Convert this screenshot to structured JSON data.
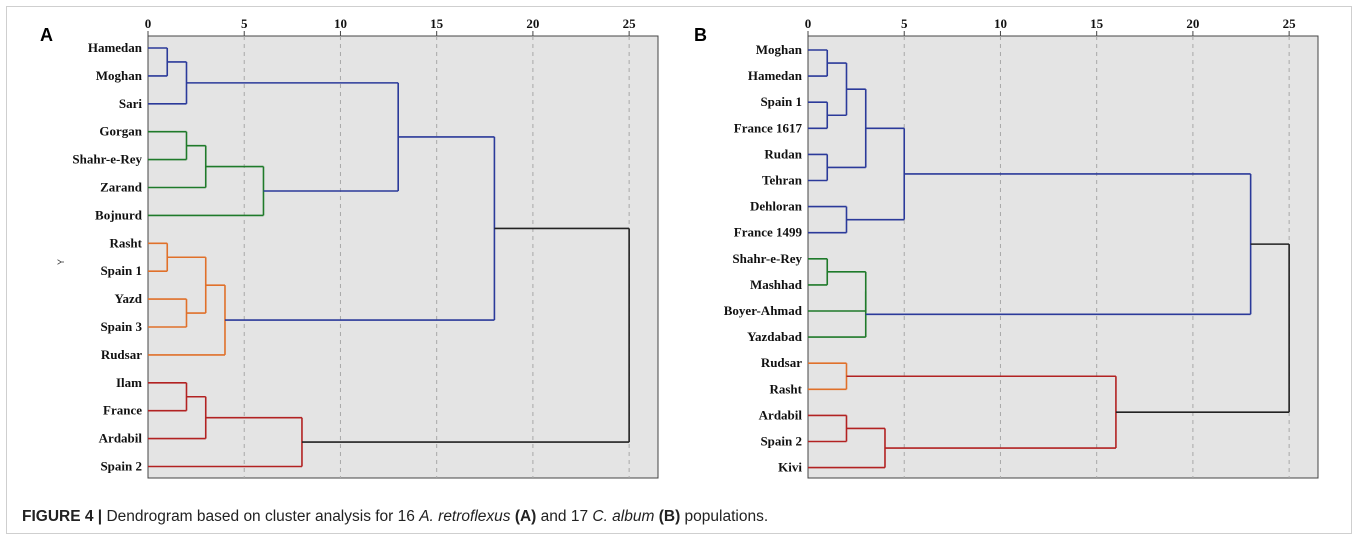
{
  "caption": {
    "prefix": "FIGURE 4 |",
    "text_1": " Dendrogram based on cluster analysis for 16 ",
    "species_1": "A. retroflexus",
    "panel_a_ref": " (A)",
    "text_2": " and 17 ",
    "species_2": "C. album",
    "panel_b_ref": " (B)",
    "text_3": " populations."
  },
  "colors": {
    "background": "#e4e4e4",
    "blue": "#2b3a9a",
    "green": "#1f7a2a",
    "orange": "#e0702a",
    "red": "#b22222",
    "black": "#222222",
    "grid": "#a8a8a8"
  },
  "chart_data": [
    {
      "type": "dendrogram",
      "panel_label": "A",
      "side_label": "Y",
      "axis": {
        "min": 0,
        "max": 26.5,
        "ticks": [
          0,
          5,
          10,
          15,
          20,
          25
        ]
      },
      "grid": true,
      "leaves": [
        "Hamedan",
        "Moghan",
        "Sari",
        "Gorgan",
        "Shahr-e-Rey",
        "Zarand",
        "Bojnurd",
        "Rasht",
        "Spain 1",
        "Yazd",
        "Spain 3",
        "Rudsar",
        "Ilam",
        "France",
        "Ardabil",
        "Spain 2"
      ],
      "merges": [
        {
          "a": "L0",
          "b": "L1",
          "h": 1,
          "color": "blue"
        },
        {
          "a": "M0",
          "b": "L2",
          "h": 2,
          "color": "blue"
        },
        {
          "a": "L3",
          "b": "L4",
          "h": 2,
          "color": "green"
        },
        {
          "a": "M2",
          "b": "L5",
          "h": 3,
          "color": "green"
        },
        {
          "a": "M3",
          "b": "L6",
          "h": 6,
          "color": "green"
        },
        {
          "a": "M1",
          "b": "M4",
          "h": 13,
          "color": "blue"
        },
        {
          "a": "L7",
          "b": "L8",
          "h": 1,
          "color": "orange"
        },
        {
          "a": "L9",
          "b": "L10",
          "h": 2,
          "color": "orange"
        },
        {
          "a": "M6",
          "b": "M7",
          "h": 3,
          "color": "orange"
        },
        {
          "a": "M8",
          "b": "L11",
          "h": 4,
          "color": "orange"
        },
        {
          "a": "M5",
          "b": "M9",
          "h": 18,
          "color": "blue"
        },
        {
          "a": "L12",
          "b": "L13",
          "h": 2,
          "color": "red"
        },
        {
          "a": "M11",
          "b": "L14",
          "h": 3,
          "color": "red"
        },
        {
          "a": "M12",
          "b": "L15",
          "h": 8,
          "color": "red"
        },
        {
          "a": "M10",
          "b": "M13",
          "h": 25,
          "color": "black"
        }
      ]
    },
    {
      "type": "dendrogram",
      "panel_label": "B",
      "side_label": "",
      "axis": {
        "min": 0,
        "max": 26.5,
        "ticks": [
          0,
          5,
          10,
          15,
          20,
          25
        ]
      },
      "grid": true,
      "leaves": [
        "Moghan",
        "Hamedan",
        "Spain 1",
        "France 1617",
        "Rudan",
        "Tehran",
        "Dehloran",
        "France 1499",
        "Shahr-e-Rey",
        "Mashhad",
        "Boyer-Ahmad",
        "Yazdabad",
        "Rudsar",
        "Rasht",
        "Ardabil",
        "Spain 2",
        "Kivi"
      ],
      "merges": [
        {
          "a": "L0",
          "b": "L1",
          "h": 1,
          "color": "blue"
        },
        {
          "a": "L2",
          "b": "L3",
          "h": 1,
          "color": "blue"
        },
        {
          "a": "M0",
          "b": "M1",
          "h": 2,
          "color": "blue"
        },
        {
          "a": "L4",
          "b": "L5",
          "h": 1,
          "color": "blue"
        },
        {
          "a": "M2",
          "b": "M3",
          "h": 3,
          "color": "blue"
        },
        {
          "a": "L6",
          "b": "L7",
          "h": 2,
          "color": "blue"
        },
        {
          "a": "M4",
          "b": "M5",
          "h": 5,
          "color": "blue"
        },
        {
          "a": "L8",
          "b": "L9",
          "h": 1,
          "color": "green"
        },
        {
          "a": "M7",
          "b": "L10",
          "h": 3,
          "color": "green"
        },
        {
          "a": "M8",
          "b": "L11",
          "h": 3,
          "color": "green"
        },
        {
          "a": "M6",
          "b": "M9",
          "h": 23,
          "color": "blue"
        },
        {
          "a": "L12",
          "b": "L13",
          "h": 2,
          "color": "orange"
        },
        {
          "a": "L14",
          "b": "L15",
          "h": 2,
          "color": "red"
        },
        {
          "a": "M12",
          "b": "L16",
          "h": 4,
          "color": "red"
        },
        {
          "a": "M11",
          "b": "M13",
          "h": 16,
          "color": "red"
        },
        {
          "a": "M10",
          "b": "M14",
          "h": 25,
          "color": "black"
        }
      ]
    }
  ]
}
